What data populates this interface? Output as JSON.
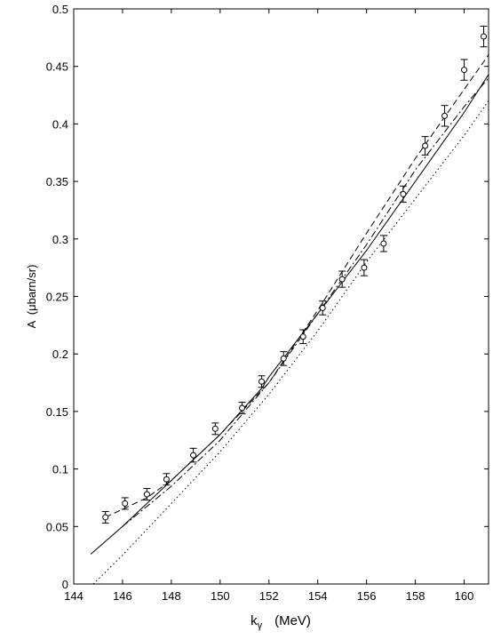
{
  "chart_data": {
    "type": "scatter-lines",
    "x_label": {
      "symbol": "k",
      "subscript": "γ",
      "unit": "(MeV)"
    },
    "y_label": "A  (μbarn/sr)",
    "xlim": [
      144,
      161
    ],
    "ylim": [
      0,
      0.5
    ],
    "xticks": [
      144,
      146,
      148,
      150,
      152,
      154,
      156,
      158,
      160
    ],
    "yticks": [
      0,
      0.05,
      0.1,
      0.15,
      0.2,
      0.25,
      0.3,
      0.35,
      0.4,
      0.45,
      0.5
    ],
    "points": {
      "x": [
        145.3,
        146.1,
        147.0,
        147.8,
        148.9,
        149.8,
        150.9,
        151.7,
        152.6,
        153.4,
        154.2,
        155.0,
        155.9,
        156.7,
        157.5,
        158.4,
        159.2,
        160.0,
        160.8
      ],
      "values": [
        0.058,
        0.07,
        0.078,
        0.091,
        0.112,
        0.135,
        0.153,
        0.176,
        0.196,
        0.215,
        0.24,
        0.265,
        0.275,
        0.296,
        0.339,
        0.381,
        0.407,
        0.447,
        0.476
      ],
      "errors": [
        0.005,
        0.005,
        0.005,
        0.005,
        0.006,
        0.005,
        0.005,
        0.005,
        0.006,
        0.006,
        0.006,
        0.007,
        0.007,
        0.007,
        0.007,
        0.008,
        0.009,
        0.009,
        0.009
      ],
      "color": "#000000"
    },
    "series": [
      {
        "style": "solid",
        "color": "#000000",
        "x": [
          144.7,
          146,
          148,
          150,
          151.7,
          152,
          154,
          156,
          158,
          160,
          161
        ],
        "values": [
          0.026,
          0.05,
          0.09,
          0.13,
          0.17,
          0.18,
          0.235,
          0.29,
          0.35,
          0.41,
          0.443
        ]
      },
      {
        "style": "dashed",
        "color": "#000000",
        "x": [
          145.3,
          146,
          147,
          148,
          150,
          152,
          154,
          156,
          158,
          160,
          161
        ],
        "values": [
          0.058,
          0.065,
          0.075,
          0.09,
          0.13,
          0.175,
          0.238,
          0.305,
          0.37,
          0.43,
          0.46
        ]
      },
      {
        "style": "dashdot",
        "color": "#000000",
        "x": [
          146,
          148,
          150,
          152,
          154,
          156,
          158,
          160,
          161
        ],
        "values": [
          0.05,
          0.085,
          0.125,
          0.175,
          0.235,
          0.295,
          0.36,
          0.415,
          0.44
        ]
      },
      {
        "style": "dotted",
        "color": "#000000",
        "x": [
          144.8,
          146,
          148,
          150,
          152,
          154,
          156,
          158,
          160,
          161
        ],
        "values": [
          0,
          0.025,
          0.07,
          0.115,
          0.165,
          0.22,
          0.28,
          0.335,
          0.39,
          0.42
        ]
      }
    ]
  }
}
